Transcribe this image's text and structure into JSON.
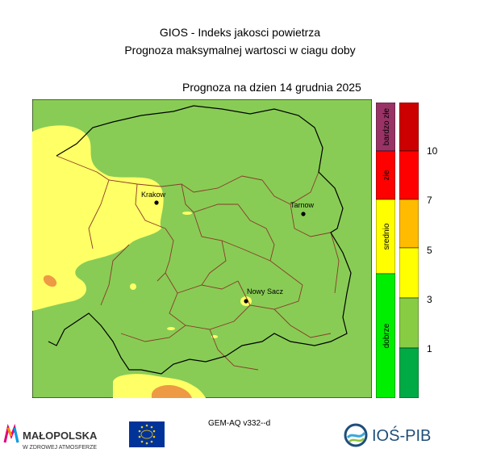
{
  "header": {
    "title_line1": "GIOS - Indeks jakosci powietrza",
    "title_line2": "Prognoza maksymalnej wartosci w ciagu doby",
    "date_label": "Prognoza na dzien  14 grudnia 2025"
  },
  "cities": [
    {
      "name": "Krakow"
    },
    {
      "name": "Tarnow"
    },
    {
      "name": "Nowy Sacz"
    }
  ],
  "categories": [
    {
      "label": "bardzo złe",
      "color": "#993366"
    },
    {
      "label": "złe",
      "color": "#ff0000"
    },
    {
      "label": "srednio",
      "color": "#ffff00"
    },
    {
      "label": "dobrze",
      "color": "#00ee00"
    }
  ],
  "scale": {
    "colors": [
      "#00aa44",
      "#88cc44",
      "#ffff00",
      "#ffbb00",
      "#ff0000",
      "#cc0000"
    ],
    "ticks": [
      "1",
      "3",
      "5",
      "7",
      "10"
    ]
  },
  "footer": {
    "model": "GEM-AQ v332--d",
    "malopolska_name": "MAŁOPOLSKA",
    "malopolska_tagline": "W ZDROWEJ ATMOSFERZE",
    "ios_name": "IOŚ-PIB"
  },
  "map_colors": {
    "good": "#88cc55",
    "moderate": "#ffff55",
    "bad": "#ee9944",
    "border_county": "#8b3a2a",
    "border_region": "#000000"
  }
}
